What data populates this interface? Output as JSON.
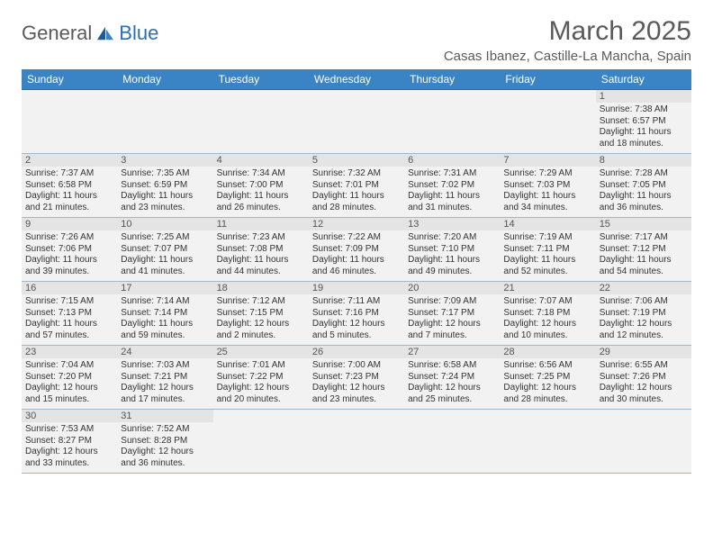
{
  "logo": {
    "text1": "General",
    "text2": "Blue"
  },
  "title": "March 2025",
  "location": "Casas Ibanez, Castille-La Mancha, Spain",
  "colors": {
    "headerBg": "#3a84c5",
    "border": "#2a6fb5",
    "cellBg": "#f2f2f2",
    "dayNumBg": "#e4e4e4"
  },
  "dayNames": [
    "Sunday",
    "Monday",
    "Tuesday",
    "Wednesday",
    "Thursday",
    "Friday",
    "Saturday"
  ],
  "weeks": [
    [
      null,
      null,
      null,
      null,
      null,
      null,
      {
        "n": "1",
        "sr": "7:38 AM",
        "ss": "6:57 PM",
        "dl": "11 hours and 18 minutes."
      }
    ],
    [
      {
        "n": "2",
        "sr": "7:37 AM",
        "ss": "6:58 PM",
        "dl": "11 hours and 21 minutes."
      },
      {
        "n": "3",
        "sr": "7:35 AM",
        "ss": "6:59 PM",
        "dl": "11 hours and 23 minutes."
      },
      {
        "n": "4",
        "sr": "7:34 AM",
        "ss": "7:00 PM",
        "dl": "11 hours and 26 minutes."
      },
      {
        "n": "5",
        "sr": "7:32 AM",
        "ss": "7:01 PM",
        "dl": "11 hours and 28 minutes."
      },
      {
        "n": "6",
        "sr": "7:31 AM",
        "ss": "7:02 PM",
        "dl": "11 hours and 31 minutes."
      },
      {
        "n": "7",
        "sr": "7:29 AM",
        "ss": "7:03 PM",
        "dl": "11 hours and 34 minutes."
      },
      {
        "n": "8",
        "sr": "7:28 AM",
        "ss": "7:05 PM",
        "dl": "11 hours and 36 minutes."
      }
    ],
    [
      {
        "n": "9",
        "sr": "7:26 AM",
        "ss": "7:06 PM",
        "dl": "11 hours and 39 minutes."
      },
      {
        "n": "10",
        "sr": "7:25 AM",
        "ss": "7:07 PM",
        "dl": "11 hours and 41 minutes."
      },
      {
        "n": "11",
        "sr": "7:23 AM",
        "ss": "7:08 PM",
        "dl": "11 hours and 44 minutes."
      },
      {
        "n": "12",
        "sr": "7:22 AM",
        "ss": "7:09 PM",
        "dl": "11 hours and 46 minutes."
      },
      {
        "n": "13",
        "sr": "7:20 AM",
        "ss": "7:10 PM",
        "dl": "11 hours and 49 minutes."
      },
      {
        "n": "14",
        "sr": "7:19 AM",
        "ss": "7:11 PM",
        "dl": "11 hours and 52 minutes."
      },
      {
        "n": "15",
        "sr": "7:17 AM",
        "ss": "7:12 PM",
        "dl": "11 hours and 54 minutes."
      }
    ],
    [
      {
        "n": "16",
        "sr": "7:15 AM",
        "ss": "7:13 PM",
        "dl": "11 hours and 57 minutes."
      },
      {
        "n": "17",
        "sr": "7:14 AM",
        "ss": "7:14 PM",
        "dl": "11 hours and 59 minutes."
      },
      {
        "n": "18",
        "sr": "7:12 AM",
        "ss": "7:15 PM",
        "dl": "12 hours and 2 minutes."
      },
      {
        "n": "19",
        "sr": "7:11 AM",
        "ss": "7:16 PM",
        "dl": "12 hours and 5 minutes."
      },
      {
        "n": "20",
        "sr": "7:09 AM",
        "ss": "7:17 PM",
        "dl": "12 hours and 7 minutes."
      },
      {
        "n": "21",
        "sr": "7:07 AM",
        "ss": "7:18 PM",
        "dl": "12 hours and 10 minutes."
      },
      {
        "n": "22",
        "sr": "7:06 AM",
        "ss": "7:19 PM",
        "dl": "12 hours and 12 minutes."
      }
    ],
    [
      {
        "n": "23",
        "sr": "7:04 AM",
        "ss": "7:20 PM",
        "dl": "12 hours and 15 minutes."
      },
      {
        "n": "24",
        "sr": "7:03 AM",
        "ss": "7:21 PM",
        "dl": "12 hours and 17 minutes."
      },
      {
        "n": "25",
        "sr": "7:01 AM",
        "ss": "7:22 PM",
        "dl": "12 hours and 20 minutes."
      },
      {
        "n": "26",
        "sr": "7:00 AM",
        "ss": "7:23 PM",
        "dl": "12 hours and 23 minutes."
      },
      {
        "n": "27",
        "sr": "6:58 AM",
        "ss": "7:24 PM",
        "dl": "12 hours and 25 minutes."
      },
      {
        "n": "28",
        "sr": "6:56 AM",
        "ss": "7:25 PM",
        "dl": "12 hours and 28 minutes."
      },
      {
        "n": "29",
        "sr": "6:55 AM",
        "ss": "7:26 PM",
        "dl": "12 hours and 30 minutes."
      }
    ],
    [
      {
        "n": "30",
        "sr": "7:53 AM",
        "ss": "8:27 PM",
        "dl": "12 hours and 33 minutes."
      },
      {
        "n": "31",
        "sr": "7:52 AM",
        "ss": "8:28 PM",
        "dl": "12 hours and 36 minutes."
      },
      null,
      null,
      null,
      null,
      null
    ]
  ],
  "labels": {
    "sunrise": "Sunrise:",
    "sunset": "Sunset:",
    "daylight": "Daylight:"
  }
}
